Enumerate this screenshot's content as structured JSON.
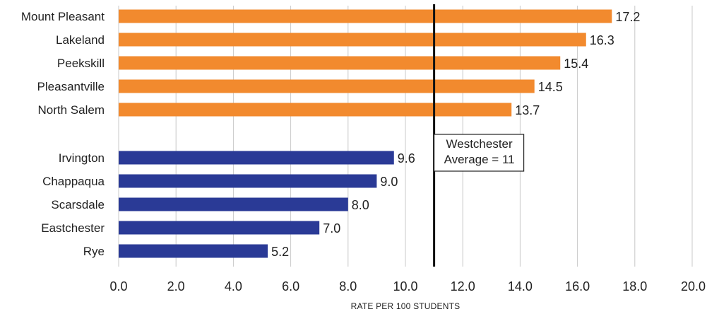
{
  "chart_data": {
    "type": "bar",
    "orientation": "horizontal",
    "xlabel": "RATE PER 100 STUDENTS",
    "xlim": [
      0,
      20
    ],
    "xticks": [
      "0.0",
      "2.0",
      "4.0",
      "6.0",
      "8.0",
      "10.0",
      "12.0",
      "14.0",
      "16.0",
      "18.0",
      "20.0"
    ],
    "grid": true,
    "groups": [
      {
        "color": "#f28a2e",
        "categories": [
          "Mount Pleasant",
          "Lakeland",
          "Peekskill",
          "Pleasantville",
          "North Salem"
        ],
        "values": [
          17.2,
          16.3,
          15.4,
          14.5,
          13.7
        ],
        "labels": [
          "17.2",
          "16.3",
          "15.4",
          "14.5",
          "13.7"
        ]
      },
      {
        "color": "#2a3a96",
        "categories": [
          "Irvington",
          "Chappaqua",
          "Scarsdale",
          "Eastchester",
          "Rye"
        ],
        "values": [
          9.6,
          9.0,
          8.0,
          7.0,
          5.2
        ],
        "labels": [
          "9.6",
          "9.0",
          "8.0",
          "7.0",
          "5.2"
        ]
      }
    ],
    "reference_line": {
      "value": 11,
      "label_lines": [
        "Westchester",
        "Average = 11"
      ],
      "color": "#111111"
    }
  }
}
